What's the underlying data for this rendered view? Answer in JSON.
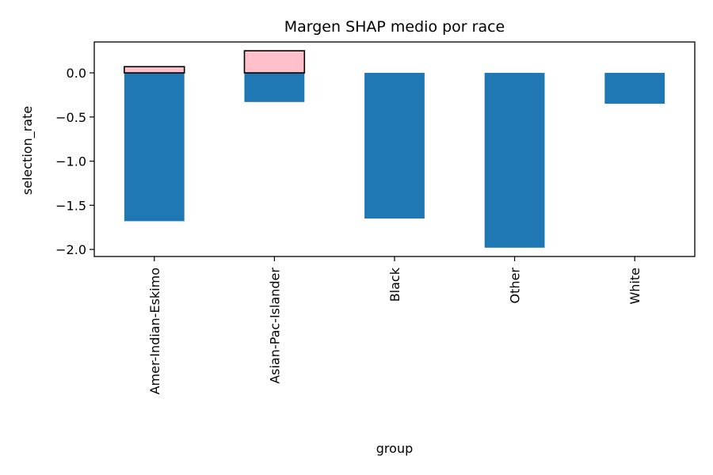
{
  "chart_data": {
    "type": "bar",
    "title": "Margen SHAP medio por race",
    "xlabel": "group",
    "ylabel": "selection_rate",
    "categories": [
      "Amer-Indian-Eskimo",
      "Asian-Pac-Islander",
      "Black",
      "Other",
      "White"
    ],
    "series": [
      {
        "values": [
          -1.68,
          -0.33,
          -1.65,
          -1.98,
          -0.35
        ],
        "color": "#1f77b4"
      },
      {
        "values": [
          0.07,
          0.25,
          null,
          null,
          null
        ],
        "color": "#ffc0cb",
        "edgecolor": "#000000"
      }
    ],
    "yticks": [
      0.0,
      -0.5,
      -1.0,
      -1.5,
      -2.0
    ],
    "ytick_labels": [
      "0.0",
      "−0.5",
      "−1.0",
      "−1.5",
      "−2.0"
    ],
    "ylim": [
      -2.08,
      0.35
    ],
    "grid": false,
    "legend": "none"
  }
}
